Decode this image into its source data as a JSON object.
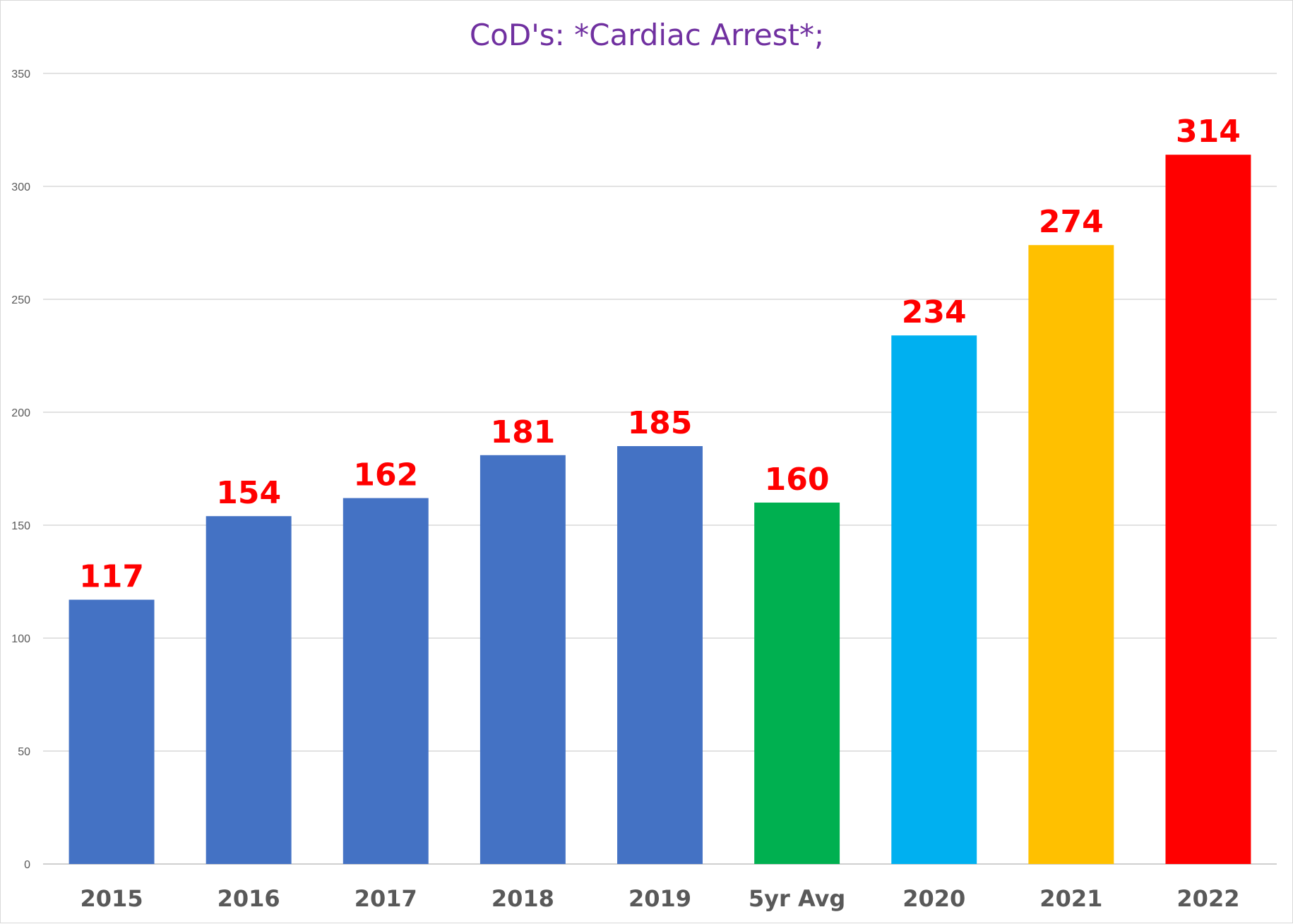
{
  "chart_data": {
    "type": "bar",
    "title": "CoD's: *Cardiac Arrest*;",
    "xlabel": "",
    "ylabel": "",
    "categories": [
      "2015",
      "2016",
      "2017",
      "2018",
      "2019",
      "5yr Avg",
      "2020",
      "2021",
      "2022"
    ],
    "values": [
      117,
      154,
      162,
      181,
      185,
      160,
      234,
      274,
      314
    ],
    "data_labels": [
      "117",
      "154",
      "162",
      "181",
      "185",
      "160",
      "234",
      "274",
      "314"
    ],
    "bar_colors": [
      "#4472c4",
      "#4472c4",
      "#4472c4",
      "#4472c4",
      "#4472c4",
      "#00b050",
      "#00b0f0",
      "#ffc000",
      "#ff0000"
    ],
    "ylim": [
      0,
      350
    ],
    "yticks": [
      0,
      50,
      100,
      150,
      200,
      250,
      300,
      350
    ],
    "ytick_labels": [
      "0",
      "50",
      "100",
      "150",
      "200",
      "250",
      "300",
      "350"
    ],
    "grid": true,
    "legend": "none"
  }
}
